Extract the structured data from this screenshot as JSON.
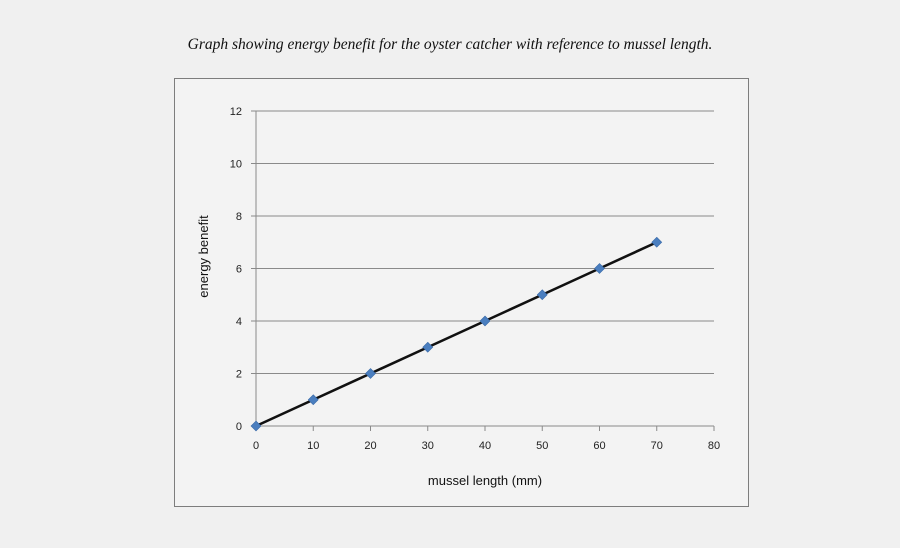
{
  "caption": "Graph showing energy benefit for the oyster catcher with reference to mussel length.",
  "chart_data": {
    "type": "scatter",
    "title": "",
    "xlabel": "mussel length (mm)",
    "ylabel": "energy benefit",
    "xlim": [
      0,
      80
    ],
    "ylim": [
      0,
      12
    ],
    "x_ticks": [
      0,
      10,
      20,
      30,
      40,
      50,
      60,
      70,
      80
    ],
    "y_ticks": [
      0,
      2,
      4,
      6,
      8,
      10,
      12
    ],
    "grid": "horizontal",
    "series": [
      {
        "name": "energy benefit",
        "x": [
          0,
          10,
          20,
          30,
          40,
          50,
          60,
          70
        ],
        "y": [
          0,
          1,
          2,
          3,
          4,
          5,
          6,
          7
        ],
        "marker": "diamond",
        "marker_color": "#4a7ebf",
        "line_color": "#111111",
        "connected": true
      }
    ],
    "legend": "none"
  }
}
